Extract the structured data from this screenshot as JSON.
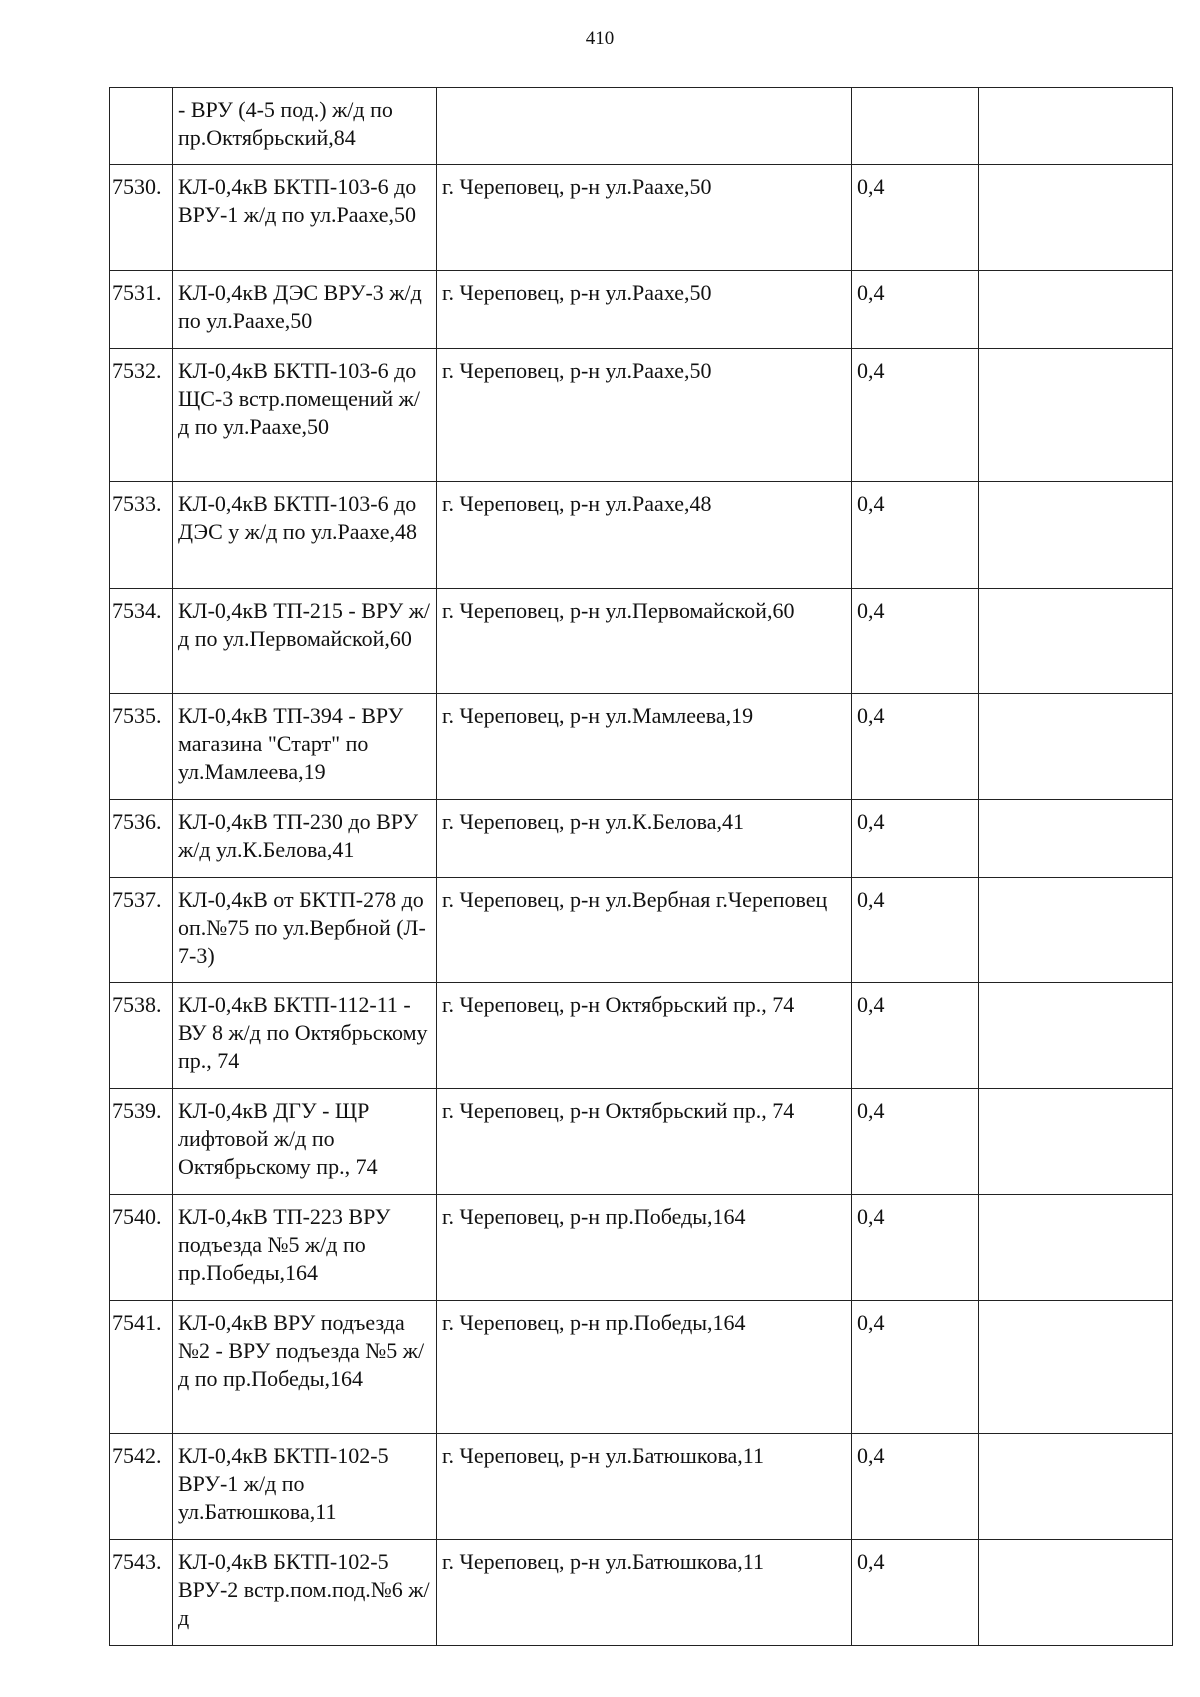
{
  "page_number": "410",
  "rows": [
    {
      "num": "",
      "name": "- ВРУ (4-5 под.) ж/д по пр.Октябрьский,84",
      "location": "",
      "voltage": "",
      "extra": "",
      "h": 77
    },
    {
      "num": "7530.",
      "name": "КЛ-0,4кВ БКТП-103-6 до ВРУ-1 ж/д по ул.Раахе,50",
      "location": "г. Череповец, р-н ул.Раахе,50",
      "voltage": "0,4",
      "extra": "",
      "h": 106
    },
    {
      "num": "7531.",
      "name": "КЛ-0,4кВ ДЭС ВРУ-3 ж/д по ул.Раахе,50",
      "location": "г. Череповец, р-н ул.Раахе,50",
      "voltage": "0,4",
      "extra": "",
      "h": 78
    },
    {
      "num": "7532.",
      "name": "КЛ-0,4кВ БКТП-103-6 до ЩС-3 встр.помещений ж/д по ул.Раахе,50",
      "location": "г. Череповец, р-н ул.Раахе,50",
      "voltage": "0,4",
      "extra": "",
      "h": 133
    },
    {
      "num": "7533.",
      "name": "КЛ-0,4кВ БКТП-103-6 до ДЭС у ж/д по ул.Раахе,48",
      "location": "г. Череповец, р-н ул.Раахе,48",
      "voltage": "0,4",
      "extra": "",
      "h": 107
    },
    {
      "num": "7534.",
      "name": "КЛ-0,4кВ ТП-215 - ВРУ ж/д по ул.Первомайской,60",
      "location": "г. Череповец, р-н ул.Первомайской,60",
      "voltage": "0,4",
      "extra": "",
      "h": 105
    },
    {
      "num": "7535.",
      "name": "КЛ-0,4кВ ТП-394 - ВРУ магазина \"Старт\" по ул.Мамлеева,19",
      "location": "г. Череповец, р-н ул.Мамлеева,19",
      "voltage": "0,4",
      "extra": "",
      "h": 106
    },
    {
      "num": "7536.",
      "name": "КЛ-0,4кВ ТП-230 до ВРУ ж/д ул.К.Белова,41",
      "location": "г. Череповец, р-н ул.К.Белова,41",
      "voltage": "0,4",
      "extra": "",
      "h": 78
    },
    {
      "num": "7537.",
      "name": "КЛ-0,4кВ от БКТП-278 до оп.№75 по ул.Вербной (Л- 7-3)",
      "location": "г. Череповец, р-н ул.Вербная г.Череповец",
      "voltage": "0,4",
      "extra": "",
      "h": 105
    },
    {
      "num": "7538.",
      "name": "КЛ-0,4кВ БКТП-112-11 - ВУ 8 ж/д по Октябрьскому пр., 74",
      "location": "г. Череповец, р-н Октябрьский пр., 74",
      "voltage": "0,4",
      "extra": "",
      "h": 106
    },
    {
      "num": "7539.",
      "name": "КЛ-0,4кВ ДГУ - ЩР лифтовой ж/д по Октябрьскому пр., 74",
      "location": "г. Череповец, р-н Октябрьский пр., 74",
      "voltage": "0,4",
      "extra": "",
      "h": 106
    },
    {
      "num": "7540.",
      "name": "КЛ-0,4кВ ТП-223 ВРУ подъезда №5 ж/д по пр.Победы,164",
      "location": "г. Череповец, р-н пр.Победы,164",
      "voltage": "0,4",
      "extra": "",
      "h": 106
    },
    {
      "num": "7541.",
      "name": "КЛ-0,4кВ ВРУ подъезда №2 - ВРУ подъезда №5 ж/д по пр.Победы,164",
      "location": "г. Череповец, р-н пр.Победы,164",
      "voltage": "0,4",
      "extra": "",
      "h": 133
    },
    {
      "num": "7542.",
      "name": "КЛ-0,4кВ БКТП-102-5 ВРУ-1 ж/д по ул.Батюшкова,11",
      "location": "г. Череповец, р-н ул.Батюшкова,11",
      "voltage": "0,4",
      "extra": "",
      "h": 106
    },
    {
      "num": "7543.",
      "name": "КЛ-0,4кВ БКТП-102-5 ВРУ-2 встр.пом.под.№6 ж/д",
      "location": "г. Череповец, р-н ул.Батюшкова,11",
      "voltage": "0,4",
      "extra": "",
      "h": 106
    }
  ]
}
